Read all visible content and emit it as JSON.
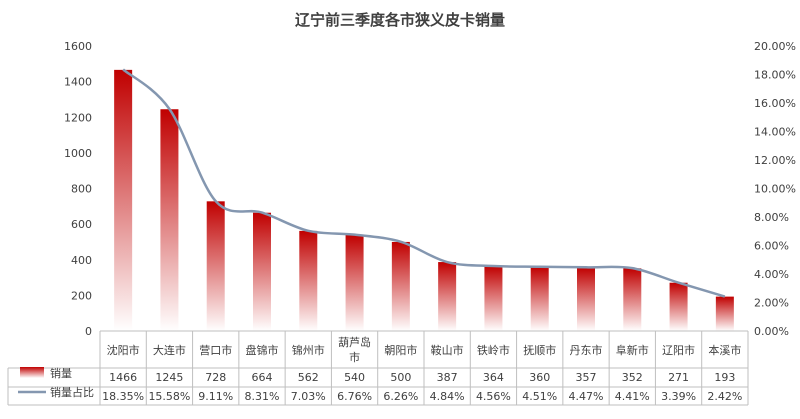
{
  "chart_data": {
    "type": "bar",
    "title": "辽宁前三季度各市狭义皮卡销量",
    "categories": [
      "沈阳市",
      "大连市",
      "营口市",
      "盘锦市",
      "锦州市",
      "葫芦岛市",
      "朝阳市",
      "鞍山市",
      "铁岭市",
      "抚顺市",
      "丹东市",
      "阜新市",
      "辽阳市",
      "本溪市"
    ],
    "series": [
      {
        "name": "销量",
        "type": "bar",
        "axis": "left",
        "values": [
          1466,
          1245,
          728,
          664,
          562,
          540,
          500,
          387,
          364,
          360,
          357,
          352,
          271,
          193
        ],
        "labels": [
          "1466",
          "1245",
          "728",
          "664",
          "562",
          "540",
          "500",
          "387",
          "364",
          "360",
          "357",
          "352",
          "271",
          "193"
        ],
        "color_top": "#c00000",
        "color_bottom": "#ffffff"
      },
      {
        "name": "销量占比",
        "type": "line",
        "axis": "right",
        "values": [
          18.35,
          15.58,
          9.11,
          8.31,
          7.03,
          6.76,
          6.26,
          4.84,
          4.56,
          4.51,
          4.47,
          4.41,
          3.39,
          2.42
        ],
        "labels": [
          "18.35%",
          "15.58%",
          "9.11%",
          "8.31%",
          "7.03%",
          "6.76%",
          "6.26%",
          "4.84%",
          "4.56%",
          "4.51%",
          "4.47%",
          "4.41%",
          "3.39%",
          "2.42%"
        ],
        "color": "#8497b0"
      }
    ],
    "y_left": {
      "min": 0,
      "max": 1600,
      "step": 200,
      "ticks": [
        "0",
        "200",
        "400",
        "600",
        "800",
        "1000",
        "1200",
        "1400",
        "1600"
      ]
    },
    "y_right": {
      "min": 0,
      "max": 20,
      "step": 2,
      "ticks": [
        "0.00%",
        "2.00%",
        "4.00%",
        "6.00%",
        "8.00%",
        "10.00%",
        "12.00%",
        "14.00%",
        "16.00%",
        "18.00%",
        "20.00%"
      ]
    },
    "grid": false,
    "legend": "data-table"
  }
}
